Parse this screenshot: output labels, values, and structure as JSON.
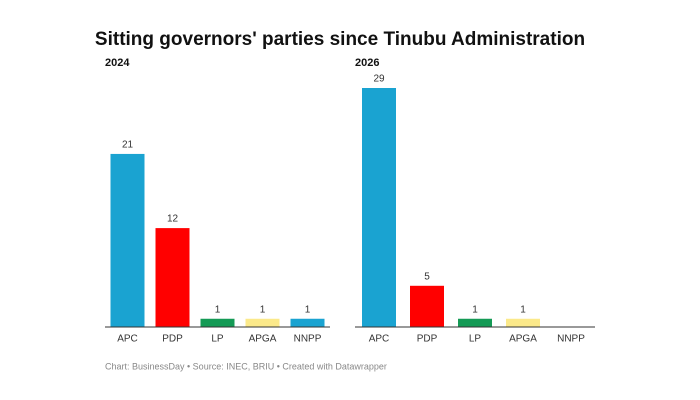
{
  "title": "Sitting governors' parties since Tinubu Administration",
  "footer": "Chart: BusinessDay • Source: INEC, BRIU • Created with Datawrapper",
  "chart_data": [
    {
      "type": "bar",
      "title": "2024",
      "categories": [
        "APC",
        "PDP",
        "LP",
        "APGA",
        "NNPP"
      ],
      "values": [
        21,
        12,
        1,
        1,
        1
      ],
      "colors": [
        "#1aa3d1",
        "#ff0000",
        "#149a55",
        "#fbe98a",
        "#1aa3d1"
      ]
    },
    {
      "type": "bar",
      "title": "2026",
      "categories": [
        "APC",
        "PDP",
        "LP",
        "APGA",
        "NNPP"
      ],
      "values": [
        29,
        5,
        1,
        1,
        null
      ],
      "colors": [
        "#1aa3d1",
        "#ff0000",
        "#149a55",
        "#fbe98a",
        "#1aa3d1"
      ]
    }
  ]
}
